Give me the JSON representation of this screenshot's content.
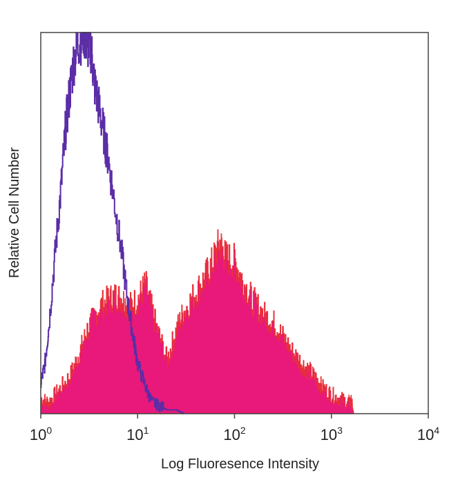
{
  "chart_data": {
    "type": "area",
    "title": "",
    "xlabel": "Log Fluoresence Intensity",
    "ylabel": "Relative Cell Number",
    "x_scale": "log",
    "xlim": [
      1,
      10000
    ],
    "ylim": [
      0,
      100
    ],
    "grid": false,
    "legend": "none",
    "x_ticks": [
      {
        "base": "10",
        "exp": "0",
        "value": 1
      },
      {
        "base": "10",
        "exp": "1",
        "value": 10
      },
      {
        "base": "10",
        "exp": "2",
        "value": 100
      },
      {
        "base": "10",
        "exp": "3",
        "value": 1000
      },
      {
        "base": "10",
        "exp": "4",
        "value": 10000
      }
    ],
    "series": [
      {
        "style": "filled",
        "color": "#e8197a",
        "edge_color": "#e8303a",
        "x": [
          1,
          1.2,
          1.5,
          2,
          2.5,
          3,
          4,
          5,
          6,
          7,
          8,
          10,
          12,
          15,
          20,
          25,
          30,
          40,
          50,
          60,
          70,
          80,
          100,
          120,
          150,
          200,
          250,
          300,
          400,
          500,
          600,
          700,
          800,
          1000,
          1200,
          1500,
          1600,
          1700
        ],
        "y": [
          4,
          3,
          6,
          10,
          16,
          22,
          28,
          30,
          31,
          30,
          28,
          30,
          34,
          24,
          14,
          22,
          27,
          32,
          36,
          40,
          45,
          41,
          40,
          35,
          30,
          26,
          24,
          21,
          16,
          13,
          11,
          9,
          7,
          5,
          4,
          3,
          3,
          0
        ]
      },
      {
        "style": "outline",
        "color": "#5b2da6",
        "x": [
          1,
          1.1,
          1.2,
          1.4,
          1.6,
          1.8,
          2,
          2.2,
          2.5,
          2.8,
          3,
          3.3,
          3.6,
          4,
          4.5,
          5,
          6,
          7,
          8,
          9,
          10,
          12,
          14,
          17,
          20,
          25,
          30
        ],
        "y": [
          8,
          13,
          22,
          42,
          58,
          75,
          85,
          93,
          98,
          100,
          97,
          96,
          86,
          80,
          73,
          66,
          52,
          40,
          28,
          20,
          13,
          7,
          3,
          2,
          1,
          1,
          0
        ]
      }
    ]
  }
}
